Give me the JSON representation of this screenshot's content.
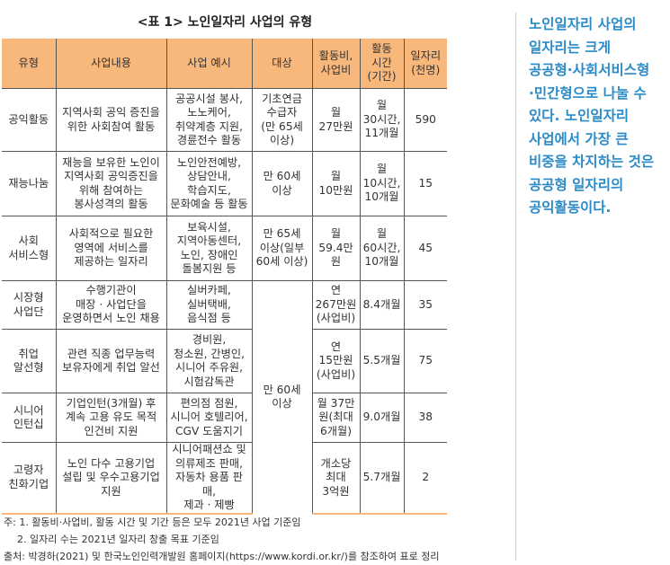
{
  "title": "<표 1> 노인일자리 사업의 유형",
  "headers": [
    "유형",
    "사업내용",
    "사업 예시",
    "대상",
    "활동비,\n사업비",
    "활동\n시간\n(기간)",
    "일자리\n(천명)"
  ],
  "rows": [
    {
      "type": "공익활동",
      "content": "지역사회 공익 증진을\n위한 사회참여 활동",
      "example": "공공시설 봉사,\n노노케어,\n취약계층 지원,\n경륜전수 활동",
      "target": "기초연금\n수급자\n(만 65세\n이상)",
      "cost": "월\n27만원",
      "period": "월\n30시간,\n11개월",
      "jobs": "590"
    },
    {
      "type": "재능나눔",
      "content": "재능을 보유한 노인이\n지역사회 공익증진을\n위해 참여하는\n봉사성격의 활동",
      "example": "노인안전예방,\n상담안내,\n학습지도,\n문화예술 등 활동",
      "target": "만 60세\n이상",
      "cost": "월\n10만원",
      "period": "월\n10시간,\n10개월",
      "jobs": "15"
    },
    {
      "type": "사회\n서비스형",
      "content": "사회적으로 필요한\n영역에 서비스를\n제공하는 일자리",
      "example": "보육시설,\n지역아동센터,\n노인, 장애인\n돌봄지원 등",
      "target": "만 65세\n이상(일부\n60세 이상)",
      "cost": "월\n59.4만원",
      "period": "월\n60시간,\n10개월",
      "jobs": "45"
    },
    {
      "type": "시장형\n사업단",
      "content": "수행기관이\n매장 · 사업단을\n운영하면서 노인 채용",
      "example": "실버카페,\n실버택배,\n음식점 등",
      "target": "만 60세\n이상",
      "cost": "연\n267만원\n(사업비)",
      "period": "8.4개월",
      "jobs": "35"
    },
    {
      "type": "취업\n알선형",
      "content": "관련 직종 업무능력\n보유자에게 취업 알선",
      "example": "경비원,\n청소원, 간병인,\n시니어 주유원,\n시험감독관",
      "cost": "연\n15만원\n(사업비)",
      "period": "5.5개월",
      "jobs": "75"
    },
    {
      "type": "시니어\n인턴십",
      "content": "기업인턴(3개월) 후\n계속 고용 유도 목적\n인건비 지원",
      "example": "편의점 점원,\n시니어 호텔리어,\nCGV 도움지기",
      "cost": "월 37만\n원(최대\n6개월)",
      "period": "9.0개월",
      "jobs": "38"
    },
    {
      "type": "고령자\n친화기업",
      "content": "노인 다수 고용기업\n설립 및 우수고용기업\n지원",
      "example": "시니어패션쇼 및\n의류제조 판매,\n자동차 용품 판매,\n제과 · 제빵",
      "cost": "개소당\n최대\n3억원",
      "period": "5.7개월",
      "jobs": "2"
    }
  ],
  "notes": [
    "주: 1. 활동비·사업비, 활동 시간 및 기간 등은 모두 2021년 사업 기준임",
    "2. 일자리 수는 2021년 일자리 창출 목표 기준임",
    "출처: 박경하(2021) 및 한국노인인력개발원 홈페이지(https://www.kordi.or.kr/)를 참조하여 표로 정리"
  ],
  "sidebar_text": "노인일자리 사업의\n일자리는 크게\n공공형·사회서비스형\n·민간형으로 나눌 수\n있다. 노인일자리\n사업에서 가장 큰\n비중을 차지하는 것은\n공공형 일자리의\n공익활동이다.",
  "colors": {
    "header_bg": "#f8b87c",
    "accent_text": "#2a8bc8"
  }
}
